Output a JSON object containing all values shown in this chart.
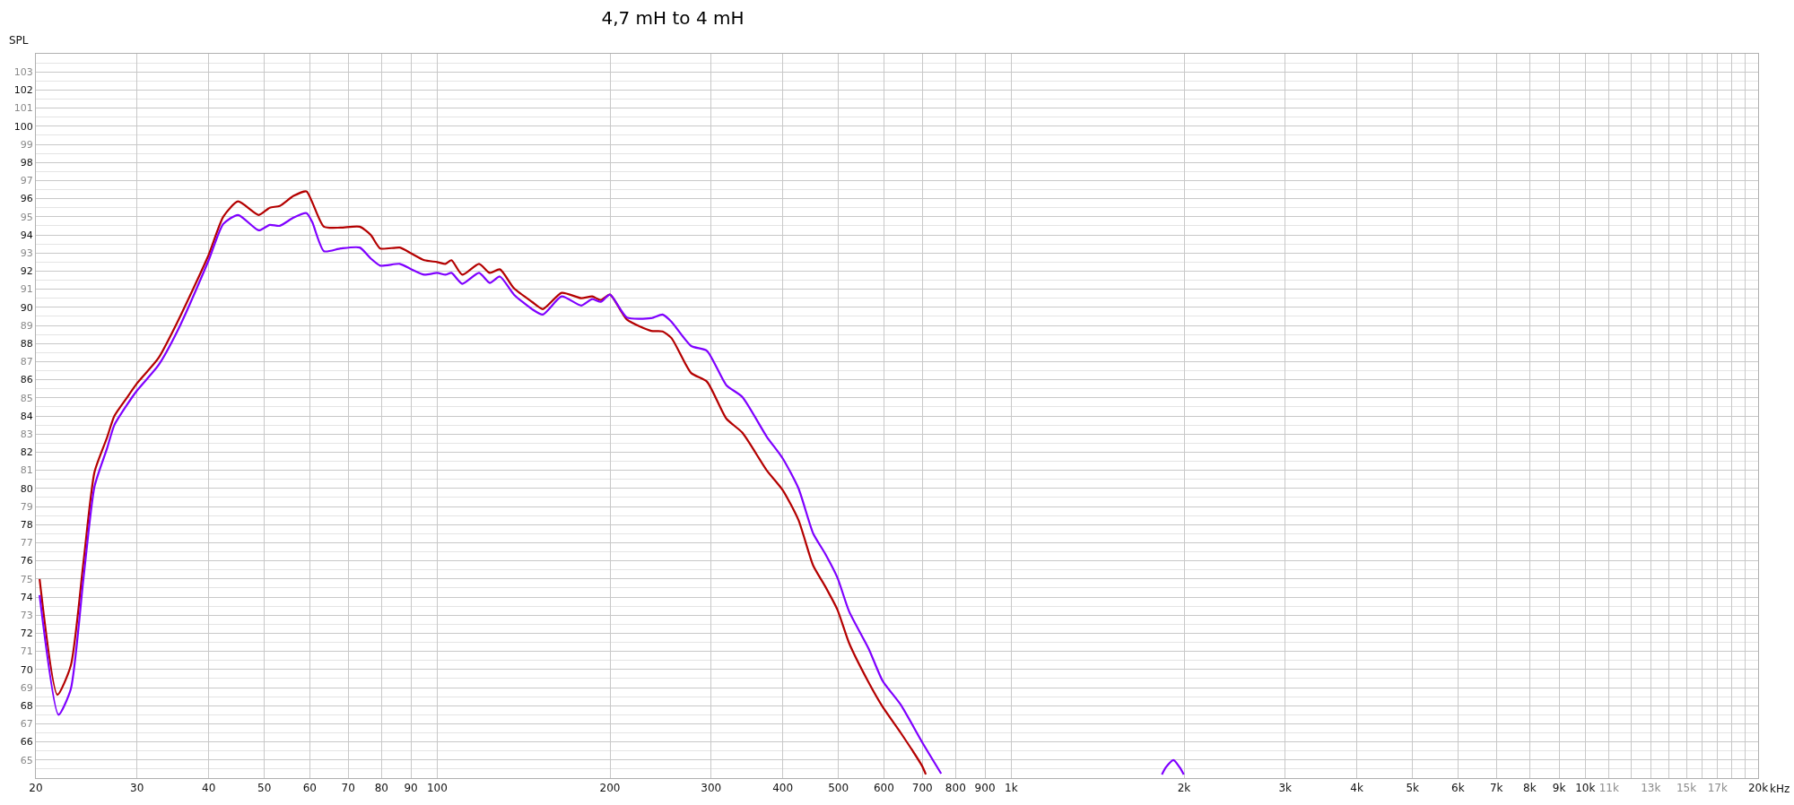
{
  "chart_data": {
    "type": "line",
    "title": "4,7 mH to 4 mH",
    "ylabel": "SPL",
    "log": "x",
    "grid": true,
    "marker": "none",
    "line_style": "solid",
    "xlim": [
      20,
      20000
    ],
    "xticks": [
      20,
      30,
      40,
      50,
      60,
      70,
      80,
      90,
      100,
      200,
      300,
      400,
      500,
      600,
      700,
      800,
      900,
      {
        "value": 1000,
        "label": "1k"
      },
      {
        "value": 2000,
        "label": "2k"
      },
      {
        "value": 3000,
        "label": "3k"
      },
      {
        "value": 4000,
        "label": "4k"
      },
      {
        "value": 5000,
        "label": "5k"
      },
      {
        "value": 6000,
        "label": "6k"
      },
      {
        "value": 7000,
        "label": "7k"
      },
      {
        "value": 8000,
        "label": "8k"
      },
      {
        "value": 9000,
        "label": "9k"
      },
      {
        "value": 10000,
        "label": "10k"
      },
      {
        "value": 11000,
        "label": "11k"
      },
      {
        "value": 12000,
        "label": null
      },
      {
        "value": 13000,
        "label": "13k"
      },
      {
        "value": 14000,
        "label": null
      },
      {
        "value": 15000,
        "label": "15k"
      },
      {
        "value": 16000,
        "label": null
      },
      {
        "value": 17000,
        "label": "17k"
      },
      {
        "value": 18000,
        "label": null
      },
      {
        "value": 19000,
        "label": null
      },
      {
        "value": 20000,
        "label": "20k"
      }
    ],
    "xlabel": "kHz",
    "ylim": [
      64,
      104
    ],
    "yticks": [
      65,
      66,
      67,
      68,
      69,
      70,
      71,
      72,
      73,
      74,
      75,
      76,
      77,
      78,
      79,
      80,
      81,
      82,
      83,
      84,
      85,
      86,
      87,
      88,
      89,
      90,
      91,
      92,
      93,
      94,
      95,
      96,
      97,
      98,
      99,
      100,
      101,
      102,
      103
    ],
    "series": [
      {
        "color": "#b40000",
        "x": [
          20.3,
          21.8,
          23.0,
          24.2,
          25.3,
          26.6,
          27.4,
          28.8,
          30,
          32.7,
          35.3,
          40,
          42.4,
          45,
          48.9,
          51.1,
          53.2,
          56.2,
          59.2,
          60.6,
          63.5,
          67.9,
          73.3,
          76.6,
          79.6,
          86.1,
          90.2,
          95,
          100,
          103.4,
          105.9,
          110.6,
          118.3,
          123.5,
          128.6,
          136.1,
          146.3,
          152.8,
          164.8,
          178.3,
          186.2,
          192.8,
          200,
          214,
          236,
          247,
          256,
          277,
          295,
          319,
          340,
          375,
          400,
          426,
          452,
          474,
          498,
          522,
          565,
          597,
          642,
          700,
          710
        ],
        "values": [
          75.0,
          68.6,
          70.2,
          75.9,
          80.9,
          82.8,
          84.0,
          85.0,
          85.8,
          87.2,
          89.2,
          92.9,
          95.0,
          95.85,
          95.1,
          95.5,
          95.6,
          96.15,
          96.4,
          95.8,
          94.45,
          94.4,
          94.45,
          94.0,
          93.25,
          93.3,
          92.97,
          92.6,
          92.5,
          92.4,
          92.6,
          91.8,
          92.4,
          91.9,
          92.1,
          91.05,
          90.3,
          89.9,
          90.8,
          90.5,
          90.6,
          90.4,
          90.7,
          89.33,
          88.7,
          88.67,
          88.3,
          86.37,
          85.9,
          83.85,
          83.08,
          81.0,
          79.9,
          78.25,
          75.73,
          74.6,
          73.3,
          71.45,
          69.26,
          67.94,
          66.5,
          64.65,
          64.2
        ]
      },
      {
        "color": "#7f00ff",
        "x": [
          20.3,
          21.9,
          23.0,
          24.2,
          25.3,
          26.6,
          27.4,
          28.8,
          30,
          32.7,
          35.3,
          40,
          42.4,
          45,
          48.9,
          51.1,
          53.2,
          56.2,
          59.2,
          60.6,
          63.5,
          67.9,
          73.3,
          76.6,
          79.6,
          86.1,
          90.2,
          95,
          100,
          103.4,
          105.9,
          110.6,
          118.3,
          123.5,
          128.6,
          136.1,
          146.3,
          152.8,
          164.8,
          178.3,
          186.2,
          192.8,
          200,
          214,
          236,
          247,
          256,
          277,
          295,
          319,
          340,
          375,
          400,
          426,
          452,
          474,
          498,
          522,
          565,
          597,
          642,
          700,
          755,
          1000,
          1830,
          1860,
          1917,
          1965,
          1998
        ],
        "values": [
          74.1,
          67.5,
          68.9,
          75.0,
          80.1,
          82.2,
          83.5,
          84.6,
          85.4,
          86.8,
          88.7,
          92.6,
          94.6,
          95.1,
          94.25,
          94.55,
          94.5,
          94.95,
          95.2,
          94.7,
          93.1,
          93.25,
          93.3,
          92.7,
          92.3,
          92.4,
          92.1,
          91.8,
          91.9,
          91.8,
          91.9,
          91.3,
          91.9,
          91.35,
          91.7,
          90.7,
          89.9,
          89.6,
          90.6,
          90.1,
          90.45,
          90.3,
          90.7,
          89.44,
          89.4,
          89.6,
          89.2,
          87.86,
          87.6,
          85.7,
          85.05,
          82.86,
          81.65,
          80.0,
          77.5,
          76.4,
          75.07,
          73.2,
          71.12,
          69.37,
          68.05,
          65.97,
          64.25,
          null,
          64.2,
          64.6,
          65.0,
          64.6,
          64.2
        ]
      }
    ]
  }
}
